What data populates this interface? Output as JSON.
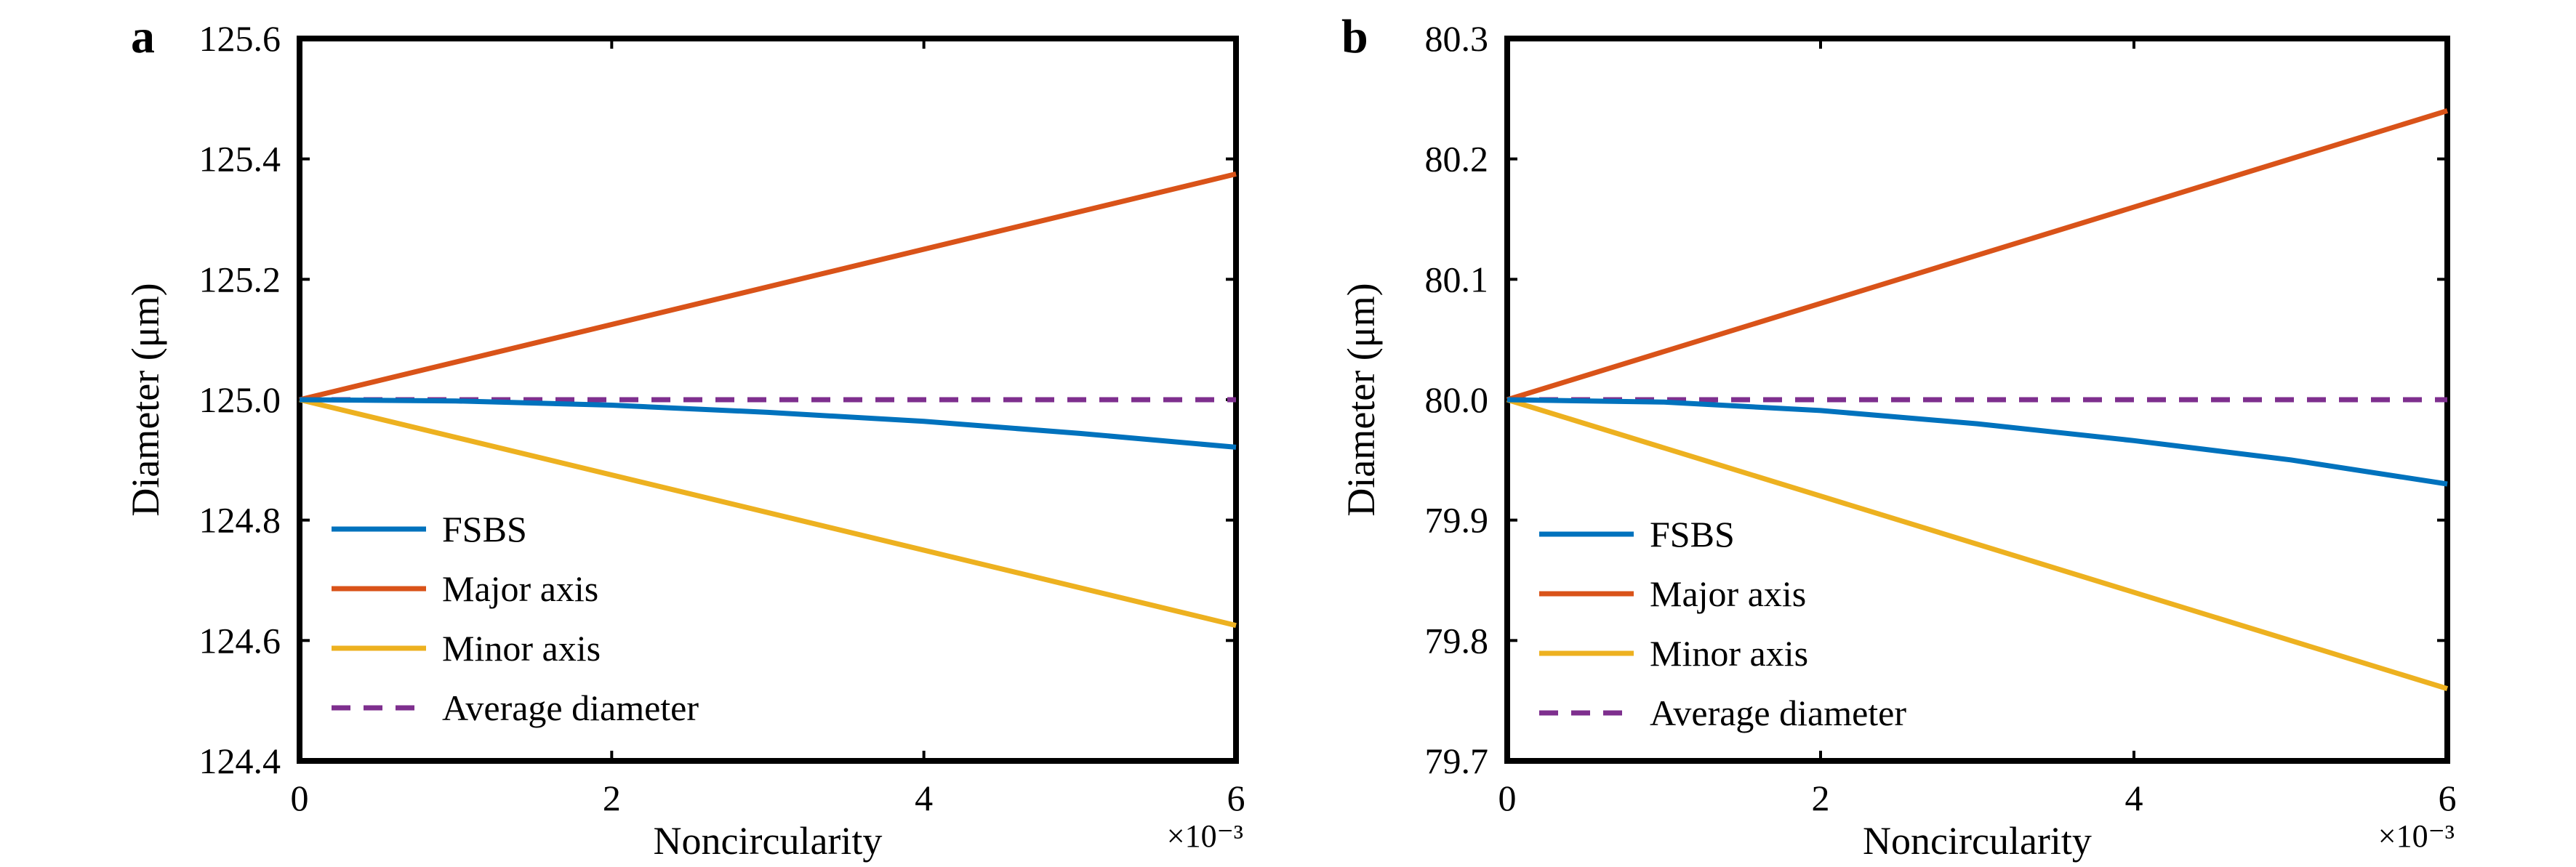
{
  "chart_data": [
    {
      "type": "line",
      "panel_label": "a",
      "xlabel": "Noncircularity",
      "x_multiplier": "×10⁻³",
      "ylabel": "Diameter (μm)",
      "xlim": [
        0,
        6
      ],
      "ylim": [
        124.4,
        125.6
      ],
      "xticks": [
        "0",
        "2",
        "4",
        "6"
      ],
      "yticks": [
        "124.4",
        "124.6",
        "124.8",
        "125.0",
        "125.2",
        "125.4",
        "125.6"
      ],
      "legend_position": "bottom-left",
      "series": [
        {
          "name": "FSBS",
          "color": "#0072BD",
          "style": "solid",
          "x": [
            0,
            1,
            2,
            3,
            4,
            5,
            6
          ],
          "values": [
            125.0,
            124.998,
            124.991,
            124.979,
            124.964,
            124.944,
            124.921
          ]
        },
        {
          "name": "Major axis",
          "color": "#D95319",
          "style": "solid",
          "x": [
            0,
            6
          ],
          "values": [
            125.0,
            125.375
          ]
        },
        {
          "name": "Minor axis",
          "color": "#EDB120",
          "style": "solid",
          "x": [
            0,
            6
          ],
          "values": [
            125.0,
            124.625
          ]
        },
        {
          "name": "Average diameter",
          "color": "#7E2F8E",
          "style": "dashed",
          "x": [
            0,
            6
          ],
          "values": [
            125.0,
            125.0
          ]
        }
      ]
    },
    {
      "type": "line",
      "panel_label": "b",
      "xlabel": "Noncircularity",
      "x_multiplier": "×10⁻³",
      "ylabel": "Diameter (μm)",
      "xlim": [
        0,
        6
      ],
      "ylim": [
        79.7,
        80.3
      ],
      "xticks": [
        "0",
        "2",
        "4",
        "6"
      ],
      "yticks": [
        "79.7",
        "79.8",
        "79.9",
        "80.0",
        "80.1",
        "80.2",
        "80.3"
      ],
      "legend_position": "bottom-left",
      "series": [
        {
          "name": "FSBS",
          "color": "#0072BD",
          "style": "solid",
          "x": [
            0,
            1,
            2,
            3,
            4,
            5,
            6
          ],
          "values": [
            80.0,
            79.998,
            79.991,
            79.98,
            79.966,
            79.95,
            79.93
          ]
        },
        {
          "name": "Major axis",
          "color": "#D95319",
          "style": "solid",
          "x": [
            0,
            6
          ],
          "values": [
            80.0,
            80.24
          ]
        },
        {
          "name": "Minor axis",
          "color": "#EDB120",
          "style": "solid",
          "x": [
            0,
            6
          ],
          "values": [
            80.0,
            79.76
          ]
        },
        {
          "name": "Average diameter",
          "color": "#7E2F8E",
          "style": "dashed",
          "x": [
            0,
            6
          ],
          "values": [
            80.0,
            80.0
          ]
        }
      ]
    }
  ]
}
